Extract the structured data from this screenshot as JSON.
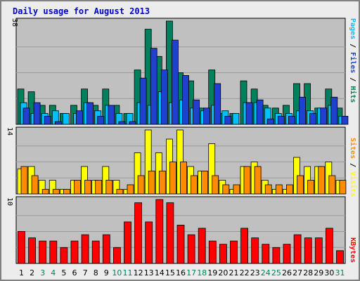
{
  "title": "Daily usage for August 2013",
  "colors": {
    "background": "#ececec",
    "plot": "#c0c0c0",
    "grid": "#9a9a9a",
    "hits": "#00805c",
    "files": "#00c0ff",
    "pages": "#2040d0",
    "visits": "#ffff00",
    "sites": "#ff8c00",
    "kbytes": "#ff0000",
    "title_text": "#0000cc",
    "weekend_text": "#00805c"
  },
  "chart_data": [
    {
      "type": "bar",
      "panel": "hits-files-pages",
      "ymax_label": "38",
      "ylim": [
        0,
        38
      ],
      "grid": true,
      "ylabel_parts": [
        {
          "text": "Pages",
          "color": "#00c0ff"
        },
        {
          "text": " / ",
          "color": "#000000"
        },
        {
          "text": "Files",
          "color": "#2040d0"
        },
        {
          "text": " / ",
          "color": "#000000"
        },
        {
          "text": "Hits",
          "color": "#00805c"
        }
      ],
      "series": [
        {
          "name": "Hits",
          "key": "hits",
          "values": [
            13,
            12,
            7,
            7,
            4,
            7,
            13,
            7,
            13,
            7,
            4,
            20,
            35,
            25,
            38,
            19,
            16,
            6,
            20,
            4,
            4,
            16,
            13,
            7,
            6,
            7,
            15,
            15,
            6,
            13,
            6
          ]
        },
        {
          "name": "Files",
          "key": "files",
          "values": [
            8,
            4,
            4,
            5,
            4,
            4,
            8,
            5,
            7,
            4,
            4,
            8,
            7,
            12,
            8,
            9,
            6,
            5,
            7,
            5,
            4,
            8,
            8,
            6,
            4,
            4,
            5,
            5,
            6,
            7,
            3
          ]
        },
        {
          "name": "Pages",
          "key": "pages",
          "values": [
            6,
            8,
            3,
            1,
            0,
            5,
            8,
            3,
            7,
            1,
            1,
            17,
            28,
            20,
            31,
            18,
            9,
            6,
            15,
            3,
            0,
            8,
            9,
            2,
            3,
            3,
            10,
            4,
            6,
            10,
            3
          ]
        }
      ]
    },
    {
      "type": "bar",
      "panel": "visits-sites",
      "ymax_label": "14",
      "ylim": [
        0,
        14
      ],
      "grid": true,
      "ylabel_parts": [
        {
          "text": "Sites",
          "color": "#ff8c00"
        },
        {
          "text": " / ",
          "color": "#000000"
        },
        {
          "text": "Visits",
          "color": "#ffff00"
        }
      ],
      "series": [
        {
          "name": "Visits",
          "key": "visits",
          "values": [
            5.5,
            6,
            3,
            3,
            1,
            3,
            6,
            3,
            6,
            3,
            1,
            9,
            14,
            9,
            12,
            14,
            6,
            5,
            11,
            3,
            1,
            6,
            7,
            3,
            1,
            1,
            8,
            6,
            6,
            7,
            3
          ]
        },
        {
          "name": "Sites",
          "key": "sites",
          "values": [
            6,
            4,
            1,
            1,
            1,
            3,
            3,
            3,
            3,
            1,
            2,
            4,
            5,
            5,
            7,
            7,
            4,
            5,
            4,
            2,
            2,
            6,
            6,
            2,
            2,
            2,
            4,
            3,
            6,
            4,
            3
          ]
        }
      ]
    },
    {
      "type": "bar",
      "panel": "kbytes",
      "ymax_label": "10",
      "ylim": [
        0,
        10
      ],
      "grid": true,
      "ylabel_parts": [
        {
          "text": "KBytes",
          "color": "#ff0000"
        }
      ],
      "series": [
        {
          "name": "KBytes",
          "key": "kbytes",
          "values": [
            5,
            4,
            3.5,
            3.5,
            2.5,
            3.5,
            4.5,
            3.5,
            4.5,
            2.5,
            6.5,
            9.5,
            6.5,
            10,
            9.5,
            6,
            4.5,
            5.5,
            3.5,
            3,
            3.5,
            5.5,
            4,
            3,
            2.5,
            3,
            4.5,
            4,
            4,
            5.5,
            2
          ]
        }
      ]
    }
  ],
  "x_labels": [
    "1",
    "2",
    "3",
    "4",
    "5",
    "6",
    "7",
    "8",
    "9",
    "10",
    "11",
    "12",
    "13",
    "14",
    "15",
    "16",
    "17",
    "18",
    "19",
    "20",
    "21",
    "22",
    "23",
    "24",
    "25",
    "26",
    "27",
    "28",
    "29",
    "30",
    "31"
  ],
  "weekend_days": [
    3,
    4,
    10,
    11,
    17,
    18,
    24,
    25,
    31
  ]
}
